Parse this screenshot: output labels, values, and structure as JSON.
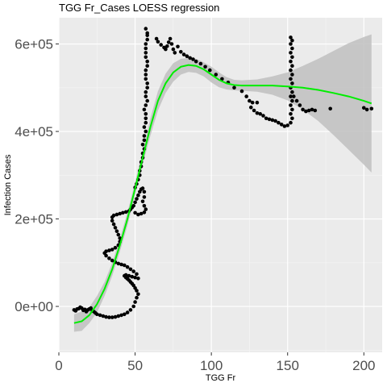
{
  "chart_data": {
    "type": "scatter",
    "title": "TGG Fr_Cases LOESS regression",
    "xlabel": "TGG Fr",
    "ylabel": "Infection Cases",
    "xlim": [
      0,
      212
    ],
    "ylim": [
      -105000,
      660000
    ],
    "x_ticks": [
      {
        "value": 0,
        "label": "0"
      },
      {
        "value": 50,
        "label": "50"
      },
      {
        "value": 100,
        "label": "100"
      },
      {
        "value": 150,
        "label": "150"
      },
      {
        "value": 200,
        "label": "200"
      }
    ],
    "y_ticks": [
      {
        "value": 0,
        "label": "0e+00"
      },
      {
        "value": 200000,
        "label": "2e+05"
      },
      {
        "value": 400000,
        "label": "4e+05"
      },
      {
        "value": 600000,
        "label": "6e+05"
      }
    ],
    "grid": true,
    "background": "#ebebeb",
    "points": [
      [
        10,
        -8000
      ],
      [
        11,
        -10000
      ],
      [
        12,
        -6000
      ],
      [
        13,
        -5000
      ],
      [
        14,
        -2000
      ],
      [
        15,
        -4000
      ],
      [
        16,
        -9000
      ],
      [
        17,
        -7000
      ],
      [
        18,
        -12000
      ],
      [
        19,
        -8000
      ],
      [
        20,
        -6000
      ],
      [
        21,
        -4000
      ],
      [
        22,
        -10000
      ],
      [
        23,
        -12000
      ],
      [
        24,
        -15000
      ],
      [
        25,
        -18000
      ],
      [
        27,
        -20000
      ],
      [
        29,
        -22000
      ],
      [
        31,
        -24000
      ],
      [
        33,
        -25000
      ],
      [
        35,
        -25000
      ],
      [
        37,
        -24000
      ],
      [
        39,
        -22000
      ],
      [
        41,
        -20000
      ],
      [
        43,
        -18000
      ],
      [
        45,
        -14000
      ],
      [
        47,
        -8000
      ],
      [
        49,
        0
      ],
      [
        50,
        10000
      ],
      [
        51,
        20000
      ],
      [
        52,
        28000
      ],
      [
        51,
        36000
      ],
      [
        50,
        42000
      ],
      [
        49,
        48000
      ],
      [
        48,
        52000
      ],
      [
        47,
        56000
      ],
      [
        46,
        60000
      ],
      [
        45,
        63000
      ],
      [
        44,
        66000
      ],
      [
        43,
        70000
      ],
      [
        44,
        72000
      ],
      [
        46,
        70000
      ],
      [
        48,
        68000
      ],
      [
        50,
        66000
      ],
      [
        52,
        64000
      ],
      [
        51,
        74000
      ],
      [
        49,
        80000
      ],
      [
        47,
        85000
      ],
      [
        45,
        90000
      ],
      [
        43,
        94000
      ],
      [
        41,
        96000
      ],
      [
        39,
        98000
      ],
      [
        37,
        101000
      ],
      [
        35,
        105000
      ],
      [
        33,
        110000
      ],
      [
        31,
        116000
      ],
      [
        30,
        122000
      ],
      [
        31,
        126000
      ],
      [
        33,
        128000
      ],
      [
        35,
        130000
      ],
      [
        37,
        134000
      ],
      [
        39,
        140000
      ],
      [
        40,
        148000
      ],
      [
        40,
        156000
      ],
      [
        39,
        164000
      ],
      [
        38,
        172000
      ],
      [
        37,
        180000
      ],
      [
        36,
        188000
      ],
      [
        35,
        196000
      ],
      [
        35,
        204000
      ],
      [
        36,
        208000
      ],
      [
        38,
        210000
      ],
      [
        40,
        212000
      ],
      [
        42,
        214000
      ],
      [
        44,
        216000
      ],
      [
        46,
        218000
      ],
      [
        47,
        222000
      ],
      [
        48,
        226000
      ],
      [
        49,
        230000
      ],
      [
        50,
        238000
      ],
      [
        51,
        246000
      ],
      [
        52,
        254000
      ],
      [
        53,
        262000
      ],
      [
        54,
        268000
      ],
      [
        55,
        270000
      ],
      [
        56,
        262000
      ],
      [
        56,
        250000
      ],
      [
        55,
        240000
      ],
      [
        56,
        230000
      ],
      [
        57,
        222000
      ],
      [
        56,
        215000
      ],
      [
        54,
        212000
      ],
      [
        52,
        210000
      ],
      [
        50,
        214000
      ],
      [
        53,
        300000
      ],
      [
        54,
        320000
      ],
      [
        55,
        340000
      ],
      [
        56,
        360000
      ],
      [
        56,
        380000
      ],
      [
        57,
        400000
      ],
      [
        57,
        420000
      ],
      [
        57,
        440000
      ],
      [
        57,
        460000
      ],
      [
        57,
        480000
      ],
      [
        58,
        500000
      ],
      [
        57,
        520000
      ],
      [
        57,
        540000
      ],
      [
        58,
        560000
      ],
      [
        57,
        580000
      ],
      [
        57,
        600000
      ],
      [
        58,
        620000
      ],
      [
        57,
        635000
      ],
      [
        58,
        625000
      ],
      [
        58,
        610000
      ],
      [
        57,
        590000
      ],
      [
        57,
        570000
      ],
      [
        58,
        550000
      ],
      [
        57,
        530000
      ],
      [
        58,
        510000
      ],
      [
        57,
        490000
      ],
      [
        58,
        470000
      ],
      [
        56,
        450000
      ],
      [
        57,
        430000
      ],
      [
        56,
        410000
      ],
      [
        56,
        390000
      ],
      [
        55,
        370000
      ],
      [
        55,
        350000
      ],
      [
        54,
        330000
      ],
      [
        53,
        310000
      ],
      [
        52,
        290000
      ],
      [
        51,
        280000
      ],
      [
        50,
        272000
      ],
      [
        64,
        612000
      ],
      [
        65,
        605000
      ],
      [
        67,
        598000
      ],
      [
        69,
        592000
      ],
      [
        70,
        588000
      ],
      [
        71,
        595000
      ],
      [
        72,
        604000
      ],
      [
        73,
        612000
      ],
      [
        74,
        600000
      ],
      [
        75,
        588000
      ],
      [
        76,
        580000
      ],
      [
        78,
        594000
      ],
      [
        80,
        582000
      ],
      [
        82,
        576000
      ],
      [
        84,
        572000
      ],
      [
        86,
        568000
      ],
      [
        88,
        565000
      ],
      [
        90,
        560000
      ],
      [
        93,
        555000
      ],
      [
        96,
        548000
      ],
      [
        99,
        540000
      ],
      [
        103,
        530000
      ],
      [
        107,
        520000
      ],
      [
        111,
        512000
      ],
      [
        115,
        500000
      ],
      [
        120,
        492000
      ],
      [
        123,
        480000
      ],
      [
        125,
        470000
      ],
      [
        127,
        466000
      ],
      [
        130,
        466000
      ],
      [
        126,
        455000
      ],
      [
        128,
        448000
      ],
      [
        130,
        442000
      ],
      [
        132,
        440000
      ],
      [
        134,
        436000
      ],
      [
        136,
        430000
      ],
      [
        138,
        428000
      ],
      [
        140,
        426000
      ],
      [
        142,
        424000
      ],
      [
        144,
        420000
      ],
      [
        146,
        416000
      ],
      [
        148,
        412000
      ],
      [
        150,
        414000
      ],
      [
        152,
        420000
      ],
      [
        152,
        440000
      ],
      [
        152,
        460000
      ],
      [
        152,
        480000
      ],
      [
        152,
        500000
      ],
      [
        152,
        520000
      ],
      [
        152,
        540000
      ],
      [
        152,
        560000
      ],
      [
        152,
        580000
      ],
      [
        152,
        600000
      ],
      [
        152,
        615000
      ],
      [
        153,
        608000
      ],
      [
        153,
        590000
      ],
      [
        153,
        570000
      ],
      [
        153,
        550000
      ],
      [
        153,
        530000
      ],
      [
        153,
        510000
      ],
      [
        153,
        490000
      ],
      [
        153,
        470000
      ],
      [
        153,
        450000
      ],
      [
        153,
        430000
      ],
      [
        154,
        480000
      ],
      [
        156,
        470000
      ],
      [
        158,
        460000
      ],
      [
        160,
        450000
      ],
      [
        162,
        446000
      ],
      [
        164,
        448000
      ],
      [
        166,
        450000
      ],
      [
        168,
        448000
      ],
      [
        178,
        452000
      ],
      [
        200,
        454000
      ],
      [
        202,
        450000
      ],
      [
        205,
        452000
      ]
    ],
    "series": [
      {
        "name": "",
        "type": "loess",
        "color": "#00ee00",
        "x": [
          10,
          15,
          20,
          25,
          30,
          35,
          40,
          45,
          50,
          55,
          60,
          65,
          70,
          75,
          80,
          85,
          90,
          95,
          100,
          105,
          110,
          115,
          120,
          130,
          140,
          150,
          160,
          170,
          180,
          190,
          200,
          205
        ],
        "y": [
          -38000,
          -34000,
          -20000,
          5000,
          40000,
          85000,
          140000,
          200000,
          270000,
          340000,
          410000,
          470000,
          510000,
          535000,
          548000,
          552000,
          550000,
          542000,
          530000,
          518000,
          510000,
          506000,
          505000,
          505000,
          505000,
          503000,
          500000,
          495000,
          488000,
          480000,
          470000,
          464000
        ]
      }
    ],
    "confidence_band": {
      "color": "#c0c0c0",
      "x": [
        10,
        15,
        20,
        25,
        30,
        35,
        40,
        45,
        50,
        55,
        60,
        65,
        70,
        75,
        80,
        85,
        90,
        95,
        100,
        105,
        110,
        115,
        120,
        130,
        140,
        150,
        160,
        170,
        180,
        190,
        200,
        205
      ],
      "upper": [
        -18000,
        -12000,
        -2000,
        24000,
        56000,
        100000,
        155000,
        215000,
        285000,
        355000,
        430000,
        492000,
        532000,
        556000,
        566000,
        568000,
        566000,
        558000,
        548000,
        535000,
        524000,
        518000,
        517000,
        519000,
        526000,
        535000,
        550000,
        566000,
        584000,
        602000,
        616000,
        622000
      ],
      "lower": [
        -58000,
        -56000,
        -38000,
        -14000,
        24000,
        70000,
        125000,
        185000,
        255000,
        325000,
        390000,
        448000,
        488000,
        514000,
        530000,
        536000,
        534000,
        526000,
        512000,
        501000,
        496000,
        494000,
        493000,
        491000,
        484000,
        471000,
        450000,
        424000,
        392000,
        358000,
        324000,
        306000
      ]
    }
  }
}
